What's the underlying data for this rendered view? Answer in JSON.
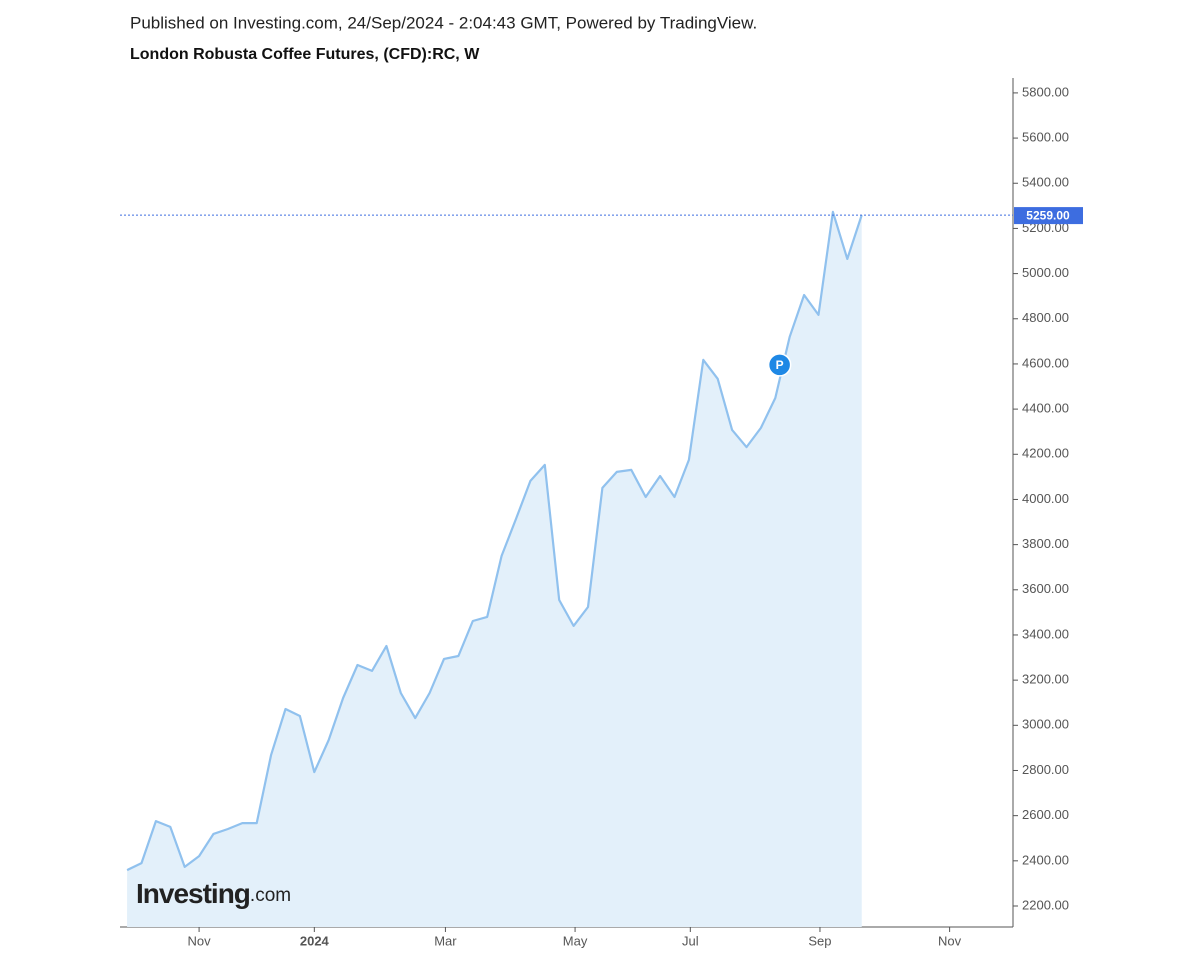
{
  "chart_data": {
    "type": "area",
    "publisher_line": "Published on Investing.com, 24/Sep/2024 - 2:04:43 GMT, Powered by TradingView.",
    "title": "London Robusta Coffee Futures, (CFD):RC, W",
    "logo": "Investing",
    "logo_suffix": ".com",
    "values": [
      2359,
      2390,
      2576,
      2550,
      2373,
      2421,
      2519,
      2541,
      2567,
      2567,
      2869,
      3072,
      3041,
      2793,
      2935,
      3121,
      3267,
      3241,
      3351,
      3143,
      3032,
      3143,
      3294,
      3307,
      3462,
      3480,
      3750,
      3914,
      4082,
      4153,
      3555,
      3440,
      3524,
      4051,
      4122,
      4131,
      4011,
      4104,
      4011,
      4175,
      4618,
      4534,
      4308,
      4232,
      4317,
      4449,
      4720,
      4905,
      4817,
      5273,
      5065,
      5259
    ],
    "color": "#90c1ee",
    "fill_color": "#e3f0fa",
    "current_price_label": "5259.00",
    "current_price_color": "#3d6de0",
    "annotations": [
      {
        "text": "P",
        "x": 45.3,
        "y": 4596
      }
    ],
    "xlim": [
      -0.49,
      61.5
    ],
    "xticks": [
      {
        "value": 5,
        "label": "Nov"
      },
      {
        "value": 13,
        "label": "2024"
      },
      {
        "value": 22.1,
        "label": "Mar"
      },
      {
        "value": 31.1,
        "label": "May"
      },
      {
        "value": 39.1,
        "label": "Jul"
      },
      {
        "value": 48.1,
        "label": "Sep"
      },
      {
        "value": 57.1,
        "label": "Nov"
      }
    ],
    "ylim": [
      2107,
      5866
    ],
    "yticks": [
      {
        "value": 2200,
        "label": "2200.00"
      },
      {
        "value": 2400,
        "label": "2400.00"
      },
      {
        "value": 2600,
        "label": "2600.00"
      },
      {
        "value": 2800,
        "label": "2800.00"
      },
      {
        "value": 3000,
        "label": "3000.00"
      },
      {
        "value": 3200,
        "label": "3200.00"
      },
      {
        "value": 3400,
        "label": "3400.00"
      },
      {
        "value": 3600,
        "label": "3600.00"
      },
      {
        "value": 3800,
        "label": "3800.00"
      },
      {
        "value": 4000,
        "label": "4000.00"
      },
      {
        "value": 4200,
        "label": "4200.00"
      },
      {
        "value": 4400,
        "label": "4400.00"
      },
      {
        "value": 4600,
        "label": "4600.00"
      },
      {
        "value": 4800,
        "label": "4800.00"
      },
      {
        "value": 5000,
        "label": "5000.00"
      },
      {
        "value": 5200,
        "label": "5200.00"
      },
      {
        "value": 5400,
        "label": "5400.00"
      },
      {
        "value": 5600,
        "label": "5600.00"
      },
      {
        "value": 5800,
        "label": "5800.00"
      }
    ]
  }
}
